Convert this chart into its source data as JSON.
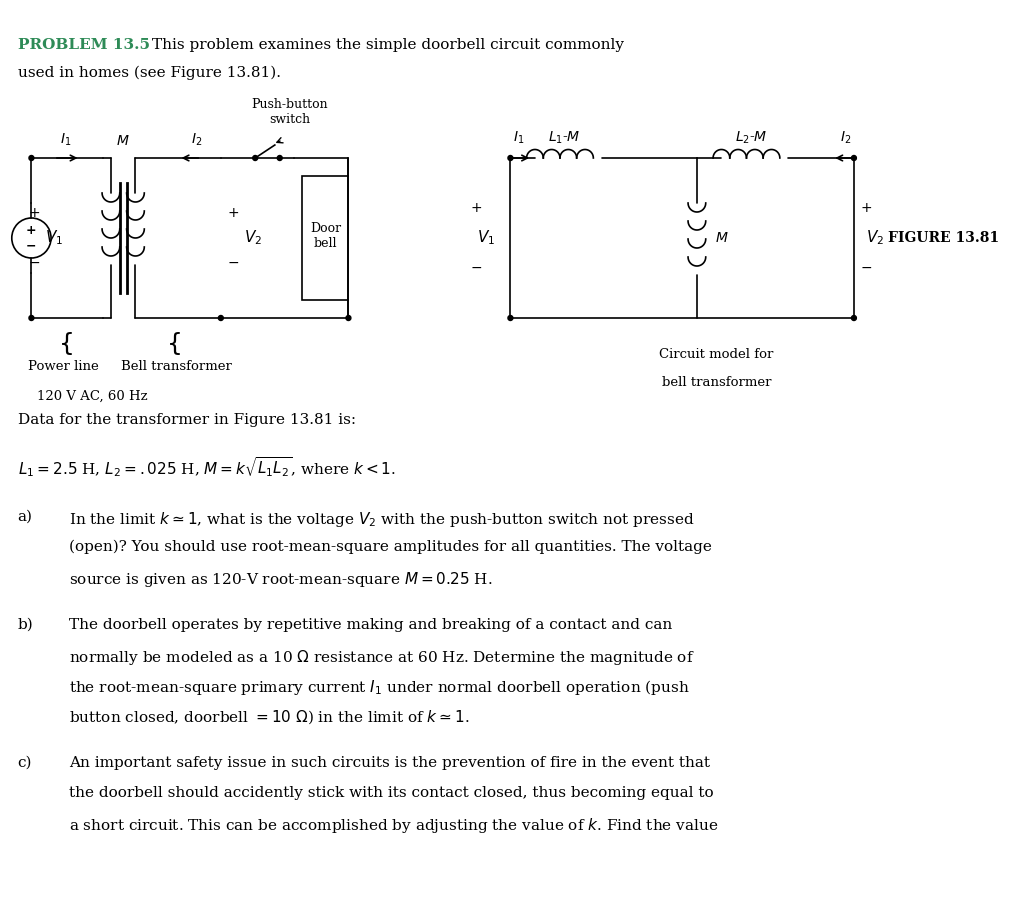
{
  "bg_color": "#ffffff",
  "problem_label": "PROBLEM 13.5",
  "problem_label_color": "#2e8b57",
  "problem_text": "This problem examines the simple doorbell circuit commonly\nused in homes (see Figure 13.81).",
  "data_line": "Data for the transformer in Figure 13.81 is:",
  "equation_line": "$L_1 = 2.5$ H, $L_2 = .025$ H, $M = k\\sqrt{L_1 L_2}$, where $k < 1$.",
  "part_a_label": "a)",
  "part_a_text": "In the limit $k \\simeq 1$, what is the voltage $V_2$ with the push-button switch not pressed\n(open)? You should use root-mean-square amplitudes for all quantities. The voltage\nsource is given as 120-V root-mean-square $M = 0.25$ H.",
  "part_b_label": "b)",
  "part_b_text": "The doorbell operates by repetitive making and breaking of a contact and can\nnormally be modeled as a 10 Ω resistance at 60 Hz. Determine the magnitude of\nthe root-mean-square primary current $I_1$ under normal doorbell operation (push\nbutton closed, doorbell $= 10$ Ω) in the limit of $k \\simeq 1$.",
  "part_c_label": "c)",
  "part_c_text": "An important safety issue in such circuits is the prevention of fire in the event that\nthe doorbell should accidently stick with its contact closed, thus becoming equal to\na short circuit. This can be accomplished by adjusting the value of $k$. Find the value",
  "fig_caption": "FIGURE 13.81",
  "circuit_caption_left1": "Power line",
  "circuit_caption_left2": "Bell transformer",
  "circuit_caption_left3": "120 V AC, 60 Hz",
  "circuit_caption_right1": "Circuit model for",
  "circuit_caption_right2": "bell transformer",
  "push_button": "Push-button\nswitch",
  "door_bell": "Door\nbell"
}
